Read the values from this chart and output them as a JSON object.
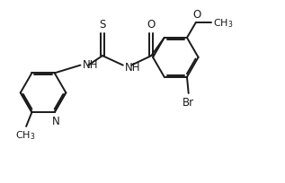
{
  "bg_color": "#ffffff",
  "line_color": "#1a1a1a",
  "line_width": 1.4,
  "font_size": 8.5,
  "fig_width": 3.17,
  "fig_height": 2.05,
  "dpi": 100,
  "xlim": [
    0,
    9.0
  ],
  "ylim": [
    0,
    5.8
  ]
}
